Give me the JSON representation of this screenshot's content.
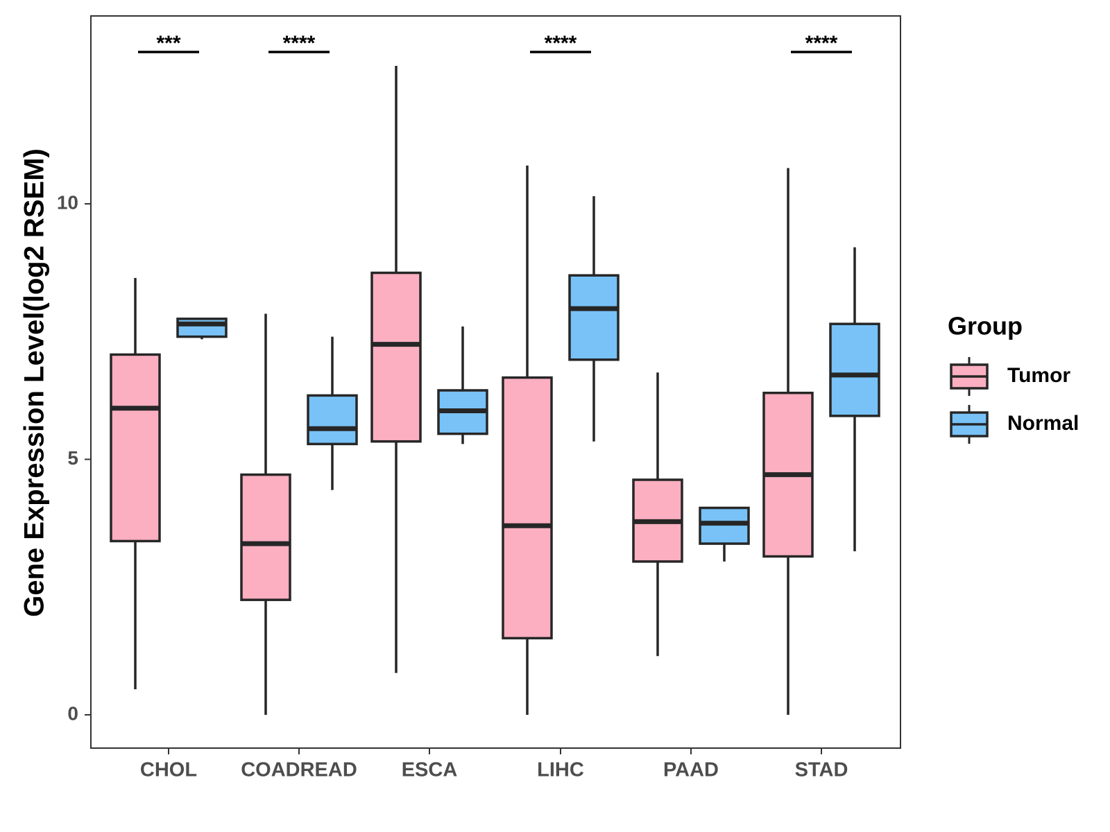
{
  "chart_data": {
    "type": "boxplot",
    "title": "",
    "xlabel": "",
    "ylabel": "Gene Expression Level(log2 RSEM)",
    "ylim": [
      -0.65,
      13.7
    ],
    "yticks": [
      0,
      5,
      10
    ],
    "yticklabels": [
      "0",
      "5",
      "10"
    ],
    "grid": false,
    "categories": [
      "CHOL",
      "COADREAD",
      "ESCA",
      "LIHC",
      "PAAD",
      "STAD"
    ],
    "colors": {
      "Tumor": "#fbafc1",
      "Normal": "#78c2f7",
      "stroke": "#262626"
    },
    "series": [
      {
        "name": "Tumor",
        "boxes": [
          {
            "category": "CHOL",
            "min": 0.5,
            "q1": 3.4,
            "median": 6.0,
            "q3": 7.05,
            "max": 8.55
          },
          {
            "category": "COADREAD",
            "min": 0.0,
            "q1": 2.25,
            "median": 3.35,
            "q3": 4.7,
            "max": 7.85
          },
          {
            "category": "ESCA",
            "min": 0.82,
            "q1": 5.35,
            "median": 7.25,
            "q3": 8.65,
            "max": 12.7
          },
          {
            "category": "LIHC",
            "min": 0.0,
            "q1": 1.5,
            "median": 3.7,
            "q3": 6.6,
            "max": 10.75
          },
          {
            "category": "PAAD",
            "min": 1.15,
            "q1": 3.0,
            "median": 3.78,
            "q3": 4.6,
            "max": 6.7
          },
          {
            "category": "STAD",
            "min": 0.0,
            "q1": 3.1,
            "median": 4.7,
            "q3": 6.3,
            "max": 10.7
          }
        ]
      },
      {
        "name": "Normal",
        "boxes": [
          {
            "category": "CHOL",
            "min": 7.35,
            "q1": 7.4,
            "median": 7.65,
            "q3": 7.75,
            "max": 7.75
          },
          {
            "category": "COADREAD",
            "min": 4.4,
            "q1": 5.3,
            "median": 5.6,
            "q3": 6.25,
            "max": 7.4
          },
          {
            "category": "ESCA",
            "min": 5.3,
            "q1": 5.5,
            "median": 5.95,
            "q3": 6.35,
            "max": 7.6
          },
          {
            "category": "LIHC",
            "min": 5.35,
            "q1": 6.95,
            "median": 7.95,
            "q3": 8.6,
            "max": 10.15
          },
          {
            "category": "PAAD",
            "min": 3.0,
            "q1": 3.35,
            "median": 3.75,
            "q3": 4.05,
            "max": 4.05
          },
          {
            "category": "STAD",
            "min": 3.2,
            "q1": 5.85,
            "median": 6.65,
            "q3": 7.65,
            "max": 9.15
          }
        ]
      }
    ],
    "annotations": [
      {
        "category": "CHOL",
        "text": "***"
      },
      {
        "category": "COADREAD",
        "text": "****"
      },
      {
        "category": "LIHC",
        "text": "****"
      },
      {
        "category": "STAD",
        "text": "****"
      }
    ],
    "legend": {
      "title": "Group",
      "placement": "right",
      "entries": [
        "Tumor",
        "Normal"
      ]
    }
  }
}
